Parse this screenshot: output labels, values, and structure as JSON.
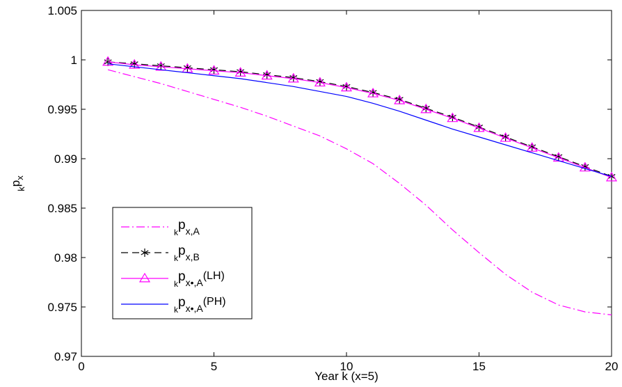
{
  "chart_data": {
    "type": "line",
    "title": "",
    "xlabel": "Year k (x=5)",
    "ylabel": {
      "sub": "k",
      "main": "p",
      "sub2": "x"
    },
    "xlim": [
      0,
      20
    ],
    "ylim": [
      0.97,
      1.005
    ],
    "xticks": [
      "0",
      "5",
      "10",
      "15",
      "20"
    ],
    "yticks": [
      "0.97",
      "0.975",
      "0.98",
      "0.985",
      "0.99",
      "0.995",
      "1",
      "1.005"
    ],
    "grid": false,
    "legend_position": "lower-left",
    "series": [
      {
        "key": "A",
        "legend": {
          "sub": "k",
          "main": "p",
          "sub2": "x,A",
          "suffix": ""
        },
        "color": "#ff00ff",
        "linestyle": "dashdot",
        "marker": "none",
        "x": [
          1,
          2,
          3,
          4,
          5,
          6,
          7,
          8,
          9,
          10,
          11,
          12,
          13,
          14,
          15,
          16,
          17,
          18,
          19,
          20
        ],
        "y": [
          0.999,
          0.9983,
          0.9976,
          0.9968,
          0.996,
          0.9952,
          0.9943,
          0.9933,
          0.9923,
          0.991,
          0.9895,
          0.9875,
          0.9853,
          0.9828,
          0.9805,
          0.9783,
          0.9765,
          0.9752,
          0.9745,
          0.9742
        ]
      },
      {
        "key": "B",
        "legend": {
          "sub": "k",
          "main": "p",
          "sub2": "x,B",
          "suffix": ""
        },
        "color": "#000000",
        "linestyle": "dashed",
        "marker": "star",
        "x": [
          1,
          2,
          3,
          4,
          5,
          6,
          7,
          8,
          9,
          10,
          11,
          12,
          13,
          14,
          15,
          16,
          17,
          18,
          19,
          20
        ],
        "y": [
          0.9998,
          0.9996,
          0.9994,
          0.9992,
          0.999,
          0.9988,
          0.9985,
          0.9982,
          0.9978,
          0.9973,
          0.9967,
          0.996,
          0.9951,
          0.9942,
          0.9932,
          0.9922,
          0.9912,
          0.9902,
          0.9892,
          0.9882
        ]
      },
      {
        "key": "LH",
        "legend": {
          "sub": "k",
          "main": "p",
          "sub2": "x•,A",
          "suffix": "(LH)"
        },
        "color": "#ff00ff",
        "linestyle": "solid",
        "marker": "triangle",
        "x": [
          1,
          2,
          3,
          4,
          5,
          6,
          7,
          8,
          9,
          10,
          11,
          12,
          13,
          14,
          15,
          16,
          17,
          18,
          19,
          20
        ],
        "y": [
          0.9998,
          0.9995,
          0.9993,
          0.9991,
          0.9989,
          0.9987,
          0.9984,
          0.9981,
          0.9977,
          0.9972,
          0.9966,
          0.9959,
          0.995,
          0.9941,
          0.9931,
          0.9921,
          0.9911,
          0.9901,
          0.9891,
          0.9881
        ]
      },
      {
        "key": "PH",
        "legend": {
          "sub": "k",
          "main": "p",
          "sub2": "x•,A",
          "suffix": "(PH)"
        },
        "color": "#0000ff",
        "linestyle": "solid",
        "marker": "none",
        "x": [
          1,
          2,
          3,
          4,
          5,
          6,
          7,
          8,
          9,
          10,
          11,
          12,
          13,
          14,
          15,
          16,
          17,
          18,
          19,
          20
        ],
        "y": [
          0.9996,
          0.9993,
          0.999,
          0.9987,
          0.9984,
          0.9981,
          0.9977,
          0.9973,
          0.9968,
          0.9963,
          0.9956,
          0.9948,
          0.9939,
          0.993,
          0.9922,
          0.9914,
          0.9906,
          0.9898,
          0.989,
          0.9882
        ]
      }
    ]
  }
}
